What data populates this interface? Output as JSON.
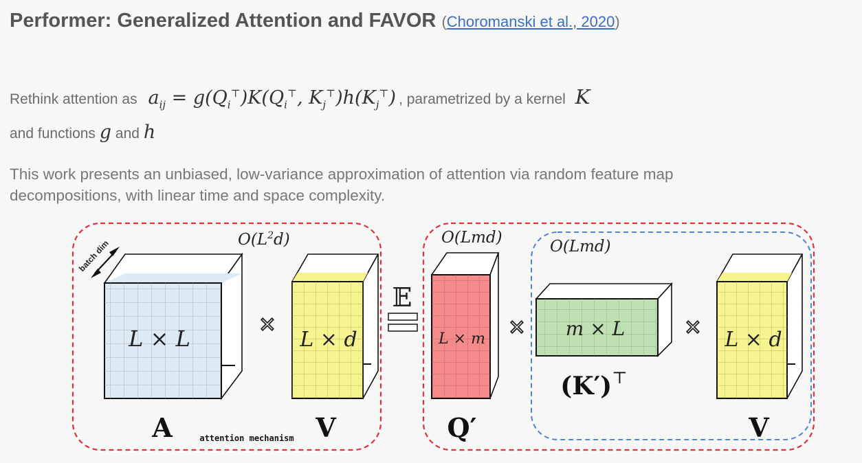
{
  "title": {
    "main": "Performer: Generalized Attention and FAVOR",
    "citation_open": "(",
    "citation_link": "Choromanski et al., 2020",
    "citation_close": ")"
  },
  "intro": {
    "prefix": "Rethink attention as",
    "equation": "aᵢⱼ = g(Qᵢ^⊤)K(Qᵢ^⊤, Kⱼ^⊤)h(Kⱼ^⊤)",
    "suffix": ", parametrized by a kernel",
    "kernel_symbol": "K",
    "line2_prefix": "and functions",
    "g": "g",
    "and": "and",
    "h": "h"
  },
  "description": "This work presents an unbiased, low-variance approximation of attention via random feature map decompositions,  with linear time and space complexity.",
  "diagram": {
    "batch_dim_label": "batch dim",
    "left_complexity": "O(L²d)",
    "q_complexity": "O(Lmd)",
    "k_complexity": "O(Lmd)",
    "expectation_symbol": "𝔼",
    "times_symbol": "✕",
    "blocks": {
      "A": {
        "dims": "L × L",
        "name": "A",
        "color": "#dde9f3"
      },
      "V1": {
        "dims": "L × d",
        "name": "V",
        "color": "#f6f48f"
      },
      "Q": {
        "dims": "L × m",
        "name": "Q′",
        "color": "#f48a8a"
      },
      "K": {
        "dims": "m × L",
        "name": "(K′)",
        "sup": "⊤",
        "color": "#bfe0b3"
      },
      "V2": {
        "dims": "L × d",
        "name": "V",
        "color": "#f6f48f"
      }
    },
    "attention_label": "attention mechanism",
    "colors": {
      "red_dash": "#e0303a",
      "blue_dash": "#4a86d6"
    }
  }
}
